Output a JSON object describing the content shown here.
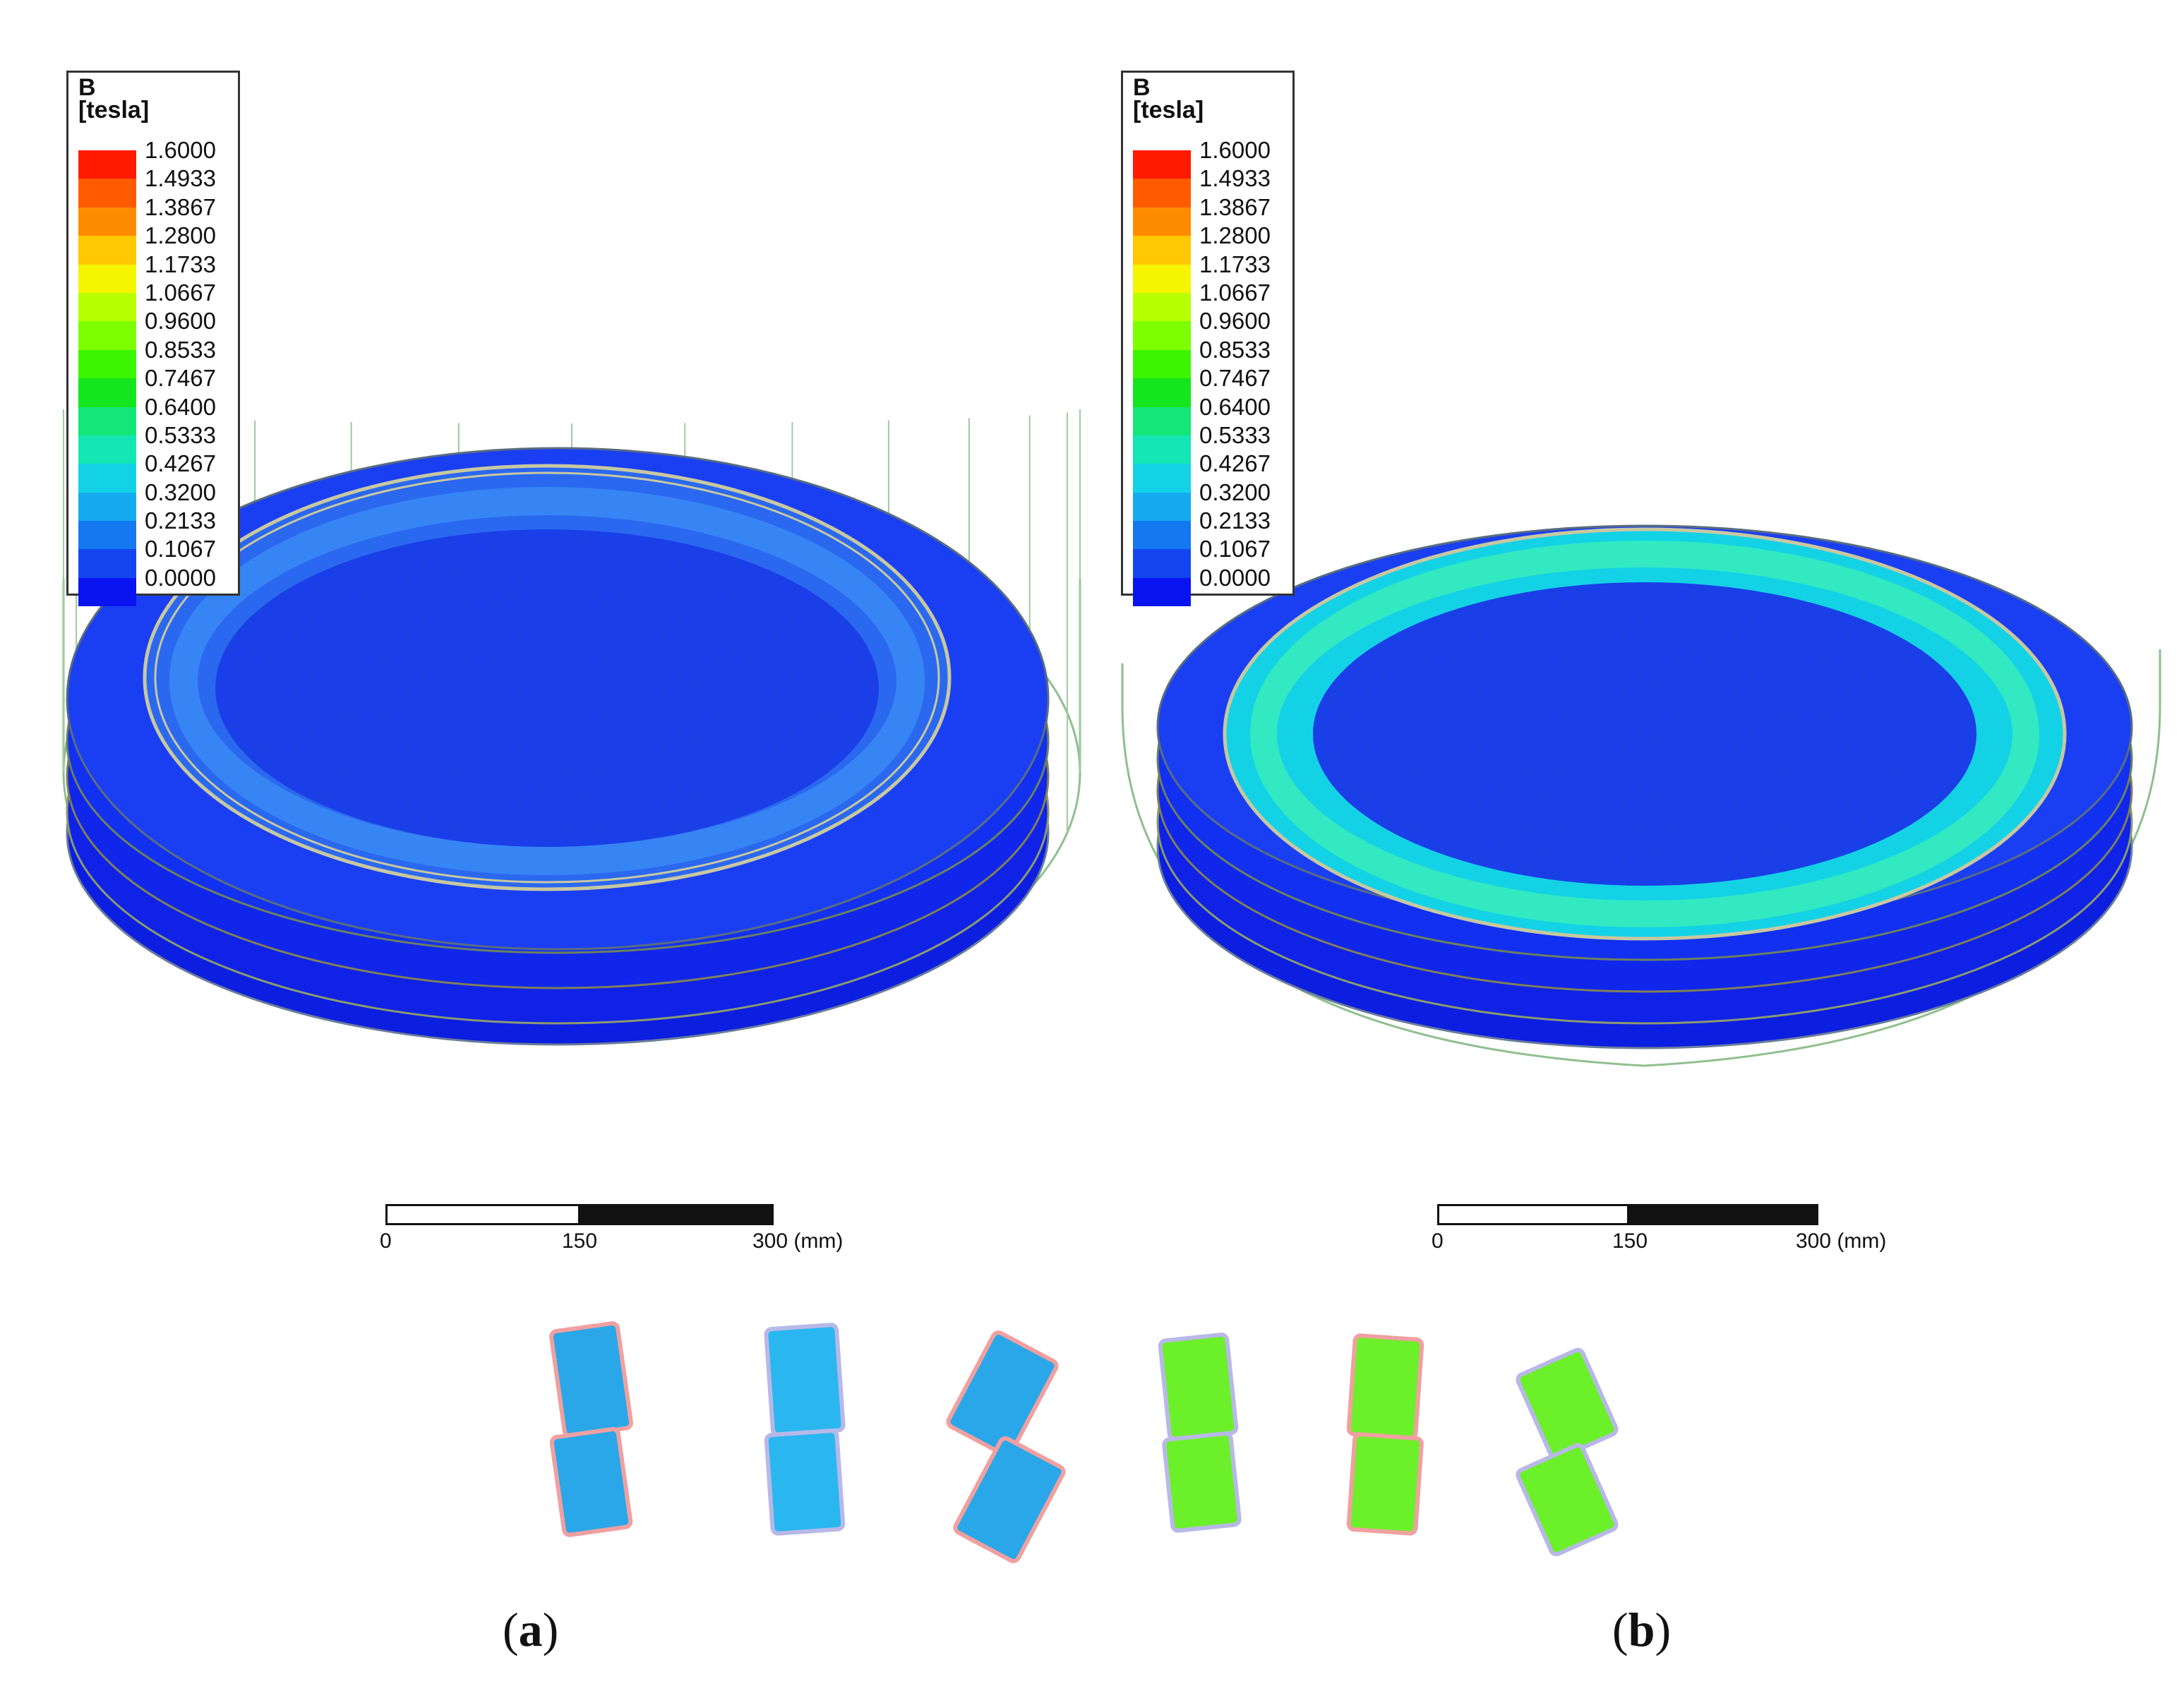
{
  "legend": {
    "quantity": "B",
    "unit": "[tesla]",
    "levels": [
      "1.6000",
      "1.4933",
      "1.3867",
      "1.2800",
      "1.1733",
      "1.0667",
      "0.9600",
      "0.8533",
      "0.7467",
      "0.6400",
      "0.5333",
      "0.4267",
      "0.3200",
      "0.2133",
      "0.1067",
      "0.0000"
    ],
    "colors": [
      "#ff1a00",
      "#ff5a00",
      "#ff8c00",
      "#ffc800",
      "#f5f500",
      "#b8ff00",
      "#7dff00",
      "#3cf500",
      "#14e61e",
      "#14e678",
      "#14e6b4",
      "#14d2e6",
      "#14aaf0",
      "#1478f0",
      "#1446f0",
      "#0a14f0"
    ]
  },
  "scalebar": {
    "ticks": [
      "0",
      "150",
      "300 (mm)"
    ]
  },
  "captions": {
    "a": "a",
    "b": "b"
  },
  "magnet_colors": {
    "a": "#2aa7e8",
    "b": "#6cf02a"
  }
}
